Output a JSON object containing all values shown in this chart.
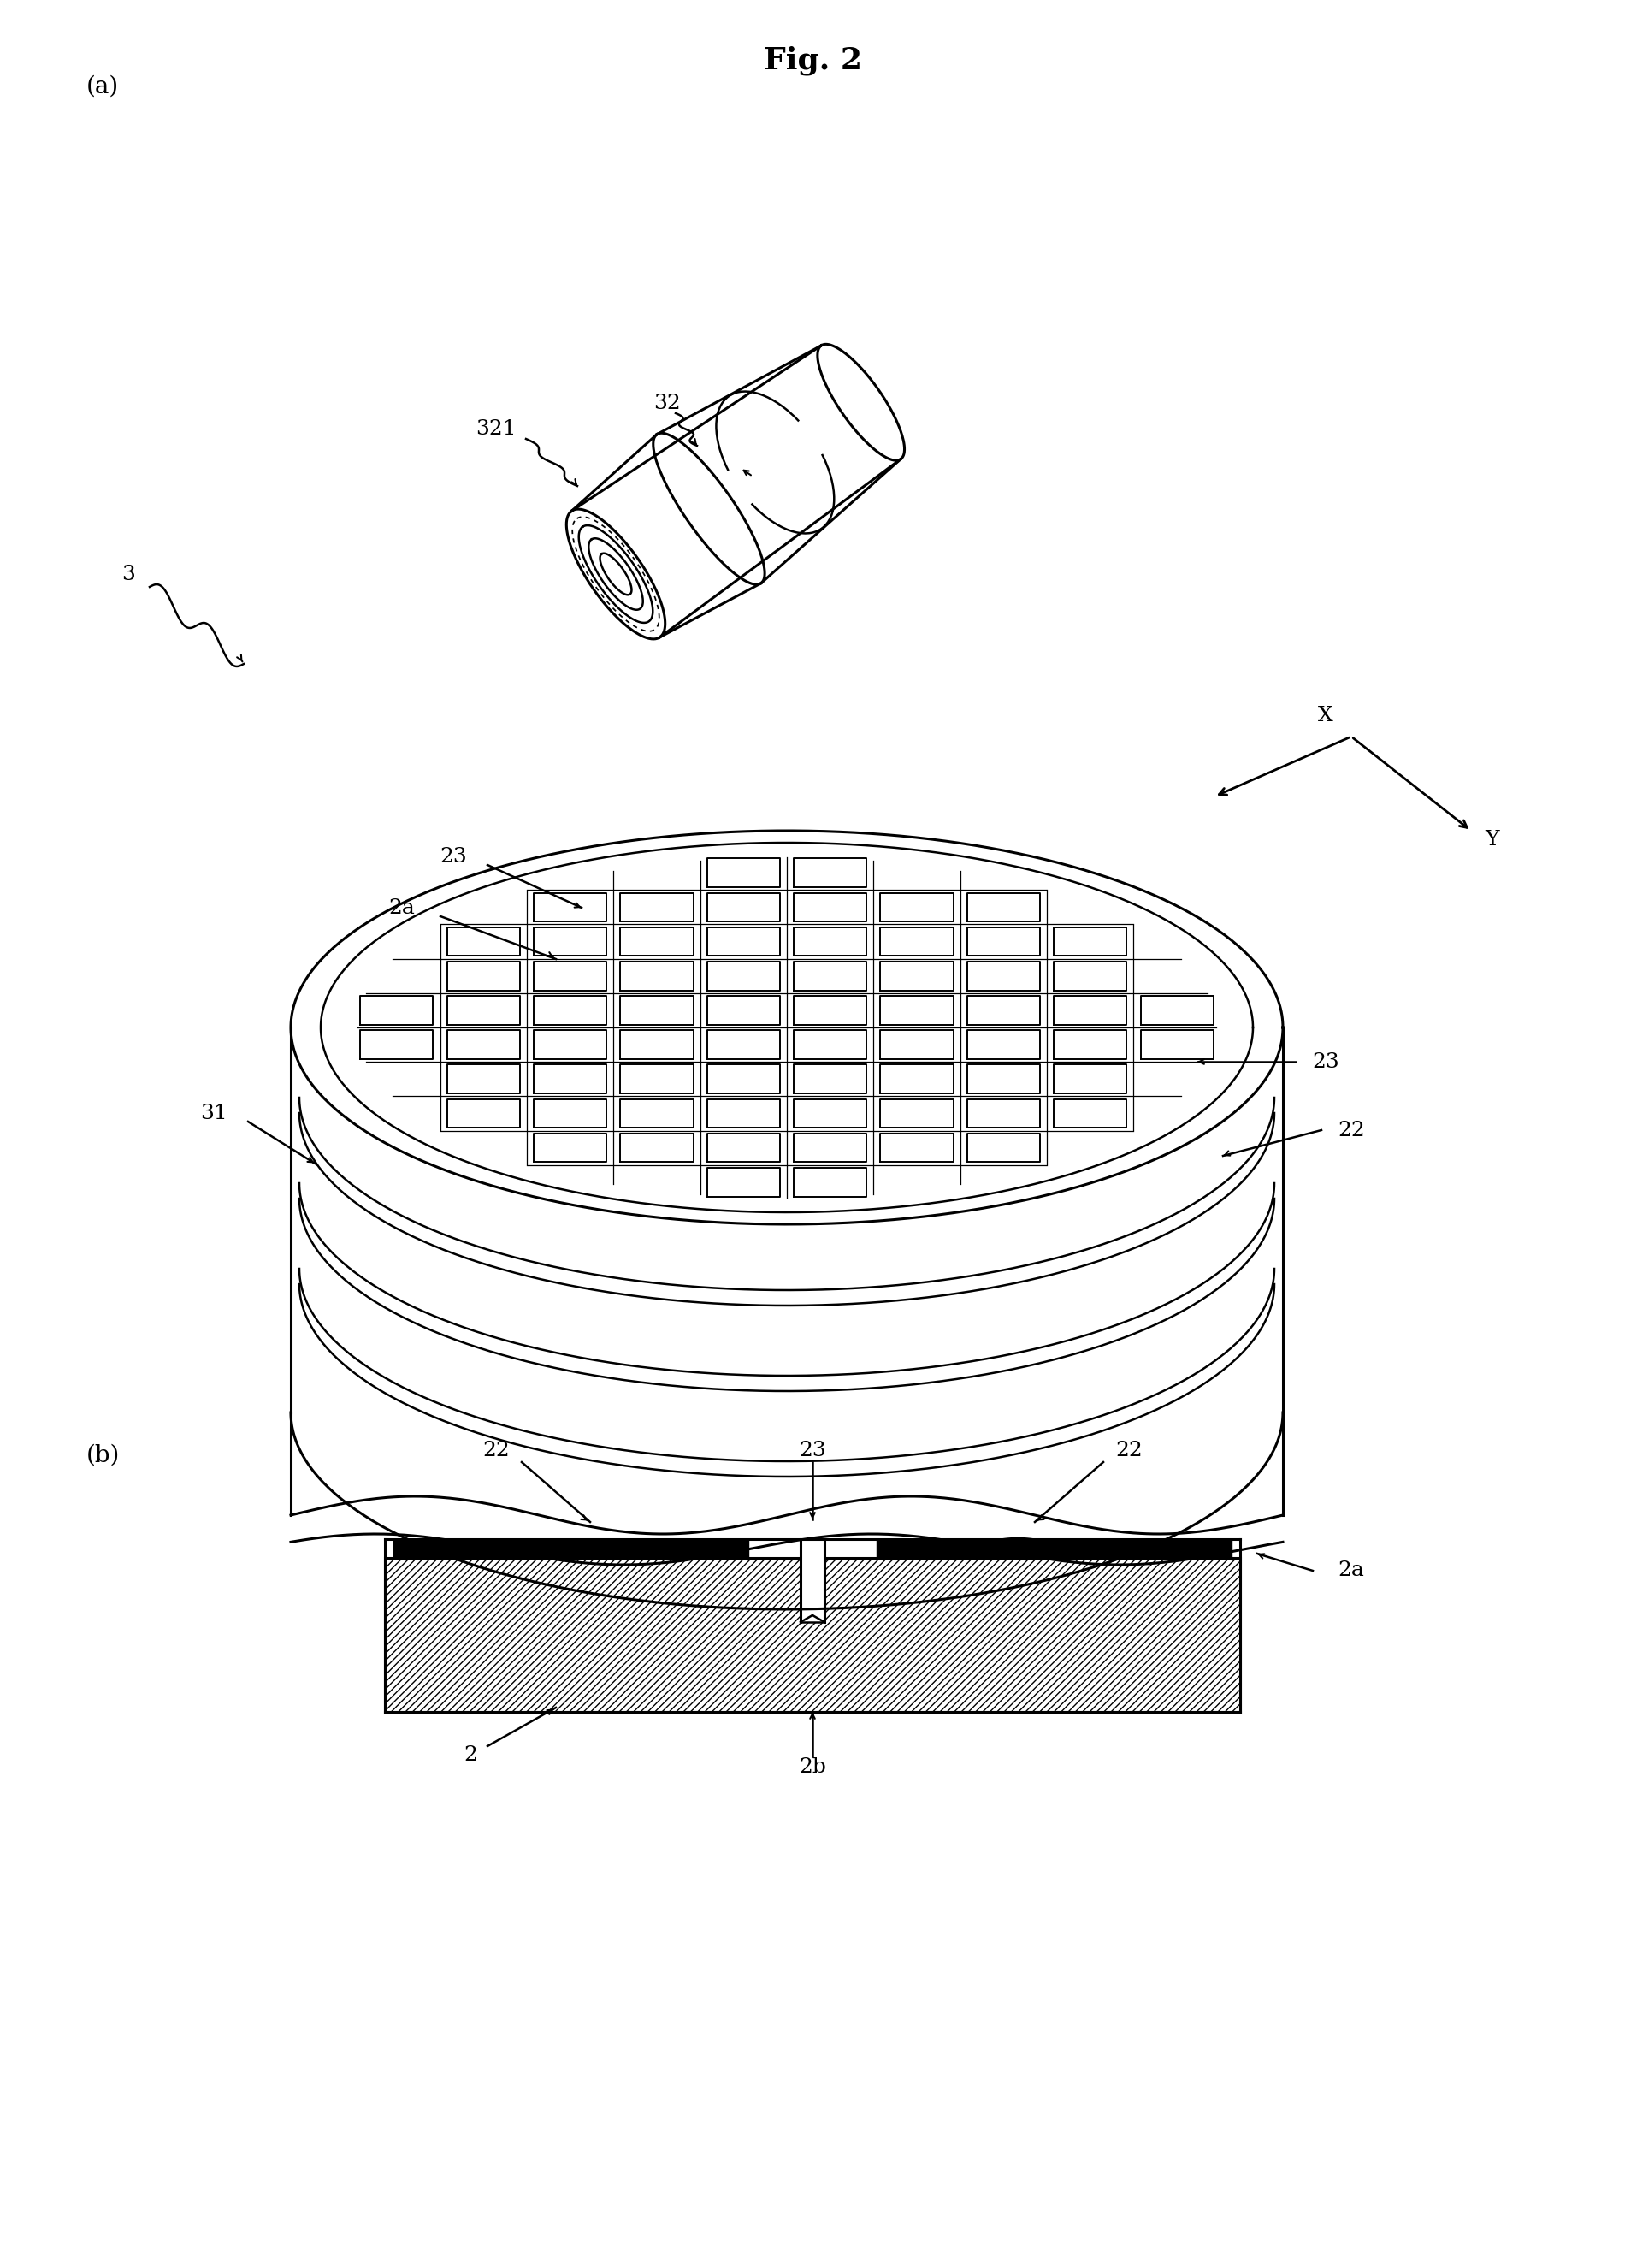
{
  "title": "Fig. 2",
  "bg_color": "#ffffff",
  "line_color": "#000000",
  "label_a": "(a)",
  "label_b": "(b)"
}
